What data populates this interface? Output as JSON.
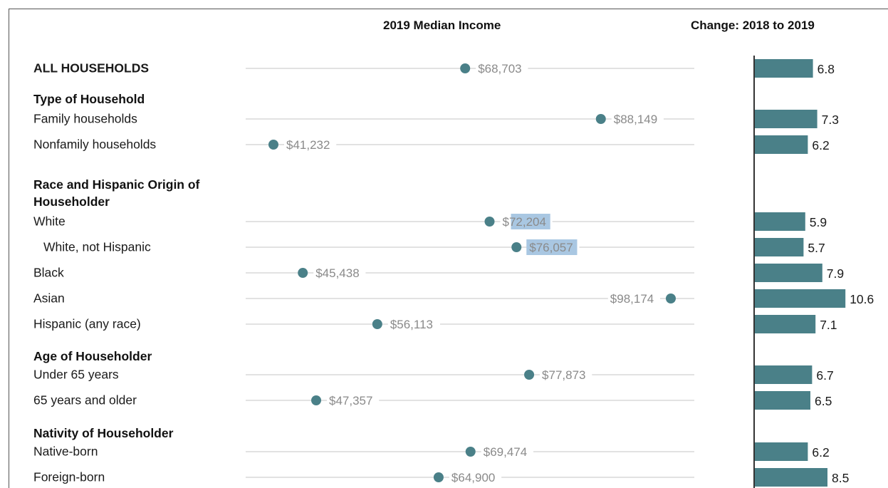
{
  "headers": {
    "income": "2019 Median Income",
    "change": "Change: 2018 to 2019"
  },
  "group_headers": {
    "type": "Type of Household",
    "race": "Race and Hispanic Origin of Householder",
    "age": "Age of Householder",
    "nativity": "Nativity of Householder"
  },
  "colors": {
    "accent": "#4a8088",
    "grid": "#e2e2e2",
    "highlight": "#a9c7e2"
  },
  "chart_data": {
    "type": "dot-and-bar",
    "title_left": "2019 Median Income",
    "title_right": "Change: 2018 to 2019",
    "rows": [
      {
        "label": "ALL HOUSEHOLDS",
        "income": 68703,
        "income_label": "$68,703",
        "change": 6.8,
        "change_label": "6.8",
        "bold": true
      },
      {
        "label": "Family households",
        "income": 88149,
        "income_label": "$88,149",
        "change": 7.3,
        "change_label": "7.3"
      },
      {
        "label": "Nonfamily households",
        "income": 41232,
        "income_label": "$41,232",
        "change": 6.2,
        "change_label": "6.2"
      },
      {
        "label": "White",
        "income": 72204,
        "income_label": "$72,204",
        "change": 5.9,
        "change_label": "5.9",
        "highlight": true
      },
      {
        "label": "White, not Hispanic",
        "income": 76057,
        "income_label": "$76,057",
        "change": 5.7,
        "change_label": "5.7",
        "highlight": true,
        "indent": true
      },
      {
        "label": "Black",
        "income": 45438,
        "income_label": "$45,438",
        "change": 7.9,
        "change_label": "7.9"
      },
      {
        "label": "Asian",
        "income": 98174,
        "income_label": "$98,174",
        "change": 10.6,
        "change_label": "10.6",
        "label_left": true
      },
      {
        "label": "Hispanic (any race)",
        "income": 56113,
        "income_label": "$56,113",
        "change": 7.1,
        "change_label": "7.1"
      },
      {
        "label": "Under 65 years",
        "income": 77873,
        "income_label": "$77,873",
        "change": 6.7,
        "change_label": "6.7"
      },
      {
        "label": "65 years and older",
        "income": 47357,
        "income_label": "$47,357",
        "change": 6.5,
        "change_label": "6.5"
      },
      {
        "label": "Native-born",
        "income": 69474,
        "income_label": "$69,474",
        "change": 6.2,
        "change_label": "6.2"
      },
      {
        "label": "Foreign-born",
        "income": 64900,
        "income_label": "$64,900",
        "change": 8.5,
        "change_label": "8.5"
      }
    ],
    "income_range": [
      35000,
      103000
    ],
    "change_range": [
      0,
      11
    ],
    "grid": false
  }
}
